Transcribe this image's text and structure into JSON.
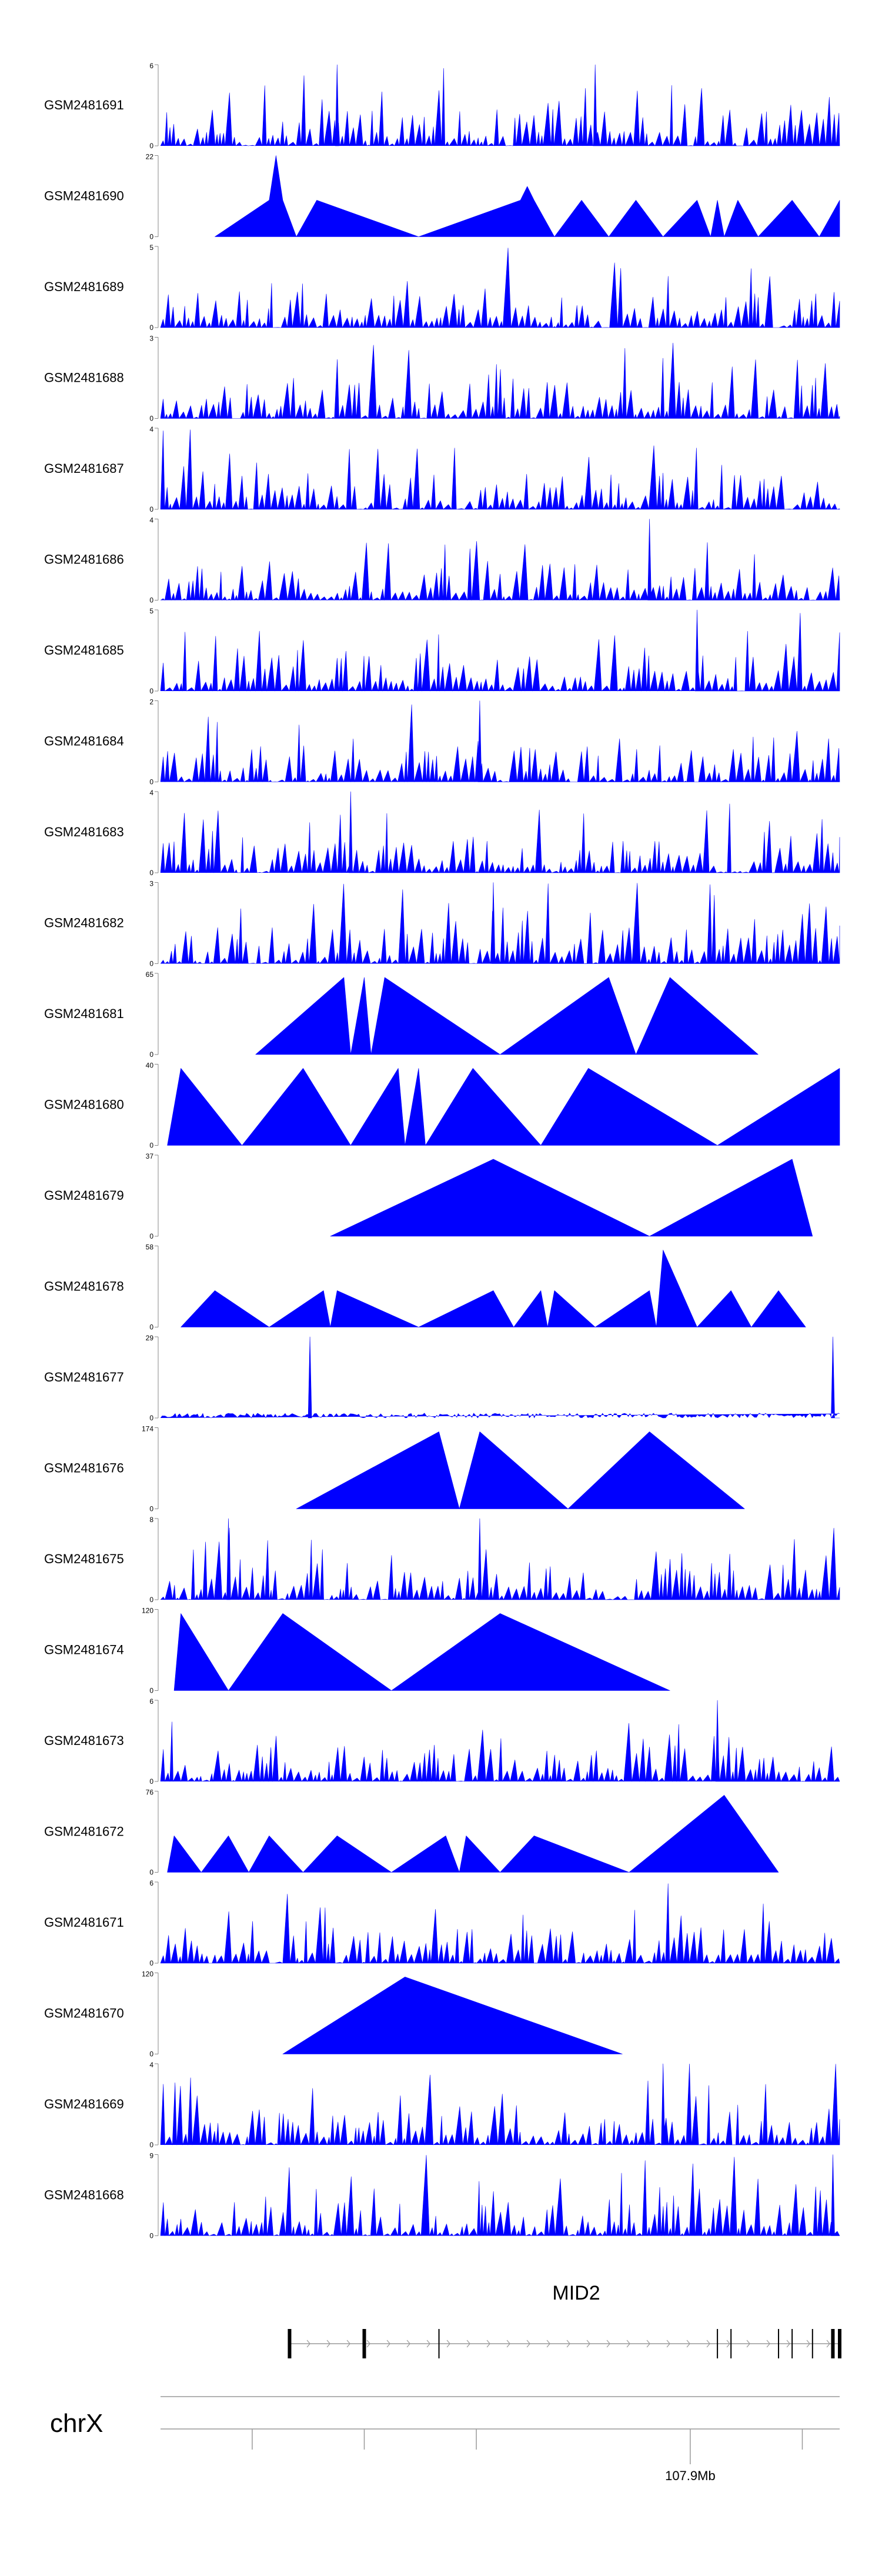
{
  "chart_data": {
    "type": "area",
    "title": "",
    "fill_color": "#0000ff",
    "tracks": [
      {
        "name": "GSM2481691",
        "ymax": 6,
        "pattern": "spiky",
        "seed": 11,
        "peaks": [
          0.26,
          0.64
        ]
      },
      {
        "name": "GSM2481690",
        "ymax": 22,
        "pattern": "triangles",
        "start": 0.08,
        "points": [
          [
            0.08,
            0
          ],
          [
            0.16,
            0.45
          ],
          [
            0.17,
            1.0
          ],
          [
            0.18,
            0.45
          ],
          [
            0.2,
            0
          ],
          [
            0.23,
            0.45
          ],
          [
            0.38,
            0
          ],
          [
            0.53,
            0.45
          ],
          [
            0.54,
            0.62
          ],
          [
            0.55,
            0.45
          ],
          [
            0.58,
            0
          ],
          [
            0.62,
            0.45
          ],
          [
            0.66,
            0
          ],
          [
            0.7,
            0.45
          ],
          [
            0.74,
            0
          ],
          [
            0.79,
            0.45
          ],
          [
            0.81,
            0
          ],
          [
            0.82,
            0.45
          ],
          [
            0.83,
            0
          ],
          [
            0.85,
            0.45
          ],
          [
            0.88,
            0
          ],
          [
            0.93,
            0.45
          ],
          [
            0.97,
            0
          ],
          [
            1.0,
            0.45
          ]
        ]
      },
      {
        "name": "GSM2481689",
        "ymax": 5,
        "pattern": "spiky",
        "seed": 23,
        "peaks": []
      },
      {
        "name": "GSM2481688",
        "ymax": 3,
        "pattern": "spiky",
        "seed": 37,
        "peaks": []
      },
      {
        "name": "GSM2481687",
        "ymax": 4,
        "pattern": "spiky",
        "seed": 41,
        "peaks": []
      },
      {
        "name": "GSM2481686",
        "ymax": 4,
        "pattern": "spiky",
        "seed": 53,
        "peaks": [
          0.72
        ]
      },
      {
        "name": "GSM2481685",
        "ymax": 5,
        "pattern": "spiky",
        "seed": 61,
        "peaks": [
          0.79
        ]
      },
      {
        "name": "GSM2481684",
        "ymax": 2,
        "pattern": "spiky",
        "seed": 71,
        "peaks": [
          0.47
        ]
      },
      {
        "name": "GSM2481683",
        "ymax": 4,
        "pattern": "spiky",
        "seed": 83,
        "peaks": [
          0.28
        ]
      },
      {
        "name": "GSM2481682",
        "ymax": 3,
        "pattern": "spiky",
        "seed": 97,
        "peaks": [
          0.49
        ]
      },
      {
        "name": "GSM2481681",
        "ymax": 65,
        "pattern": "triangles",
        "start": 0.14,
        "points": [
          [
            0.14,
            0
          ],
          [
            0.27,
            0.95
          ],
          [
            0.28,
            0
          ],
          [
            0.3,
            0.95
          ],
          [
            0.31,
            0
          ],
          [
            0.33,
            0.95
          ],
          [
            0.5,
            0
          ],
          [
            0.66,
            0.95
          ],
          [
            0.7,
            0
          ],
          [
            0.75,
            0.95
          ],
          [
            0.88,
            0
          ]
        ]
      },
      {
        "name": "GSM2481680",
        "ymax": 40,
        "pattern": "triangles",
        "start": 0.01,
        "points": [
          [
            0.01,
            0
          ],
          [
            0.03,
            0.95
          ],
          [
            0.12,
            0
          ],
          [
            0.21,
            0.95
          ],
          [
            0.28,
            0
          ],
          [
            0.35,
            0.95
          ],
          [
            0.36,
            0
          ],
          [
            0.38,
            0.95
          ],
          [
            0.39,
            0
          ],
          [
            0.46,
            0.95
          ],
          [
            0.56,
            0
          ],
          [
            0.63,
            0.95
          ],
          [
            0.82,
            0
          ],
          [
            1.0,
            0.95
          ],
          [
            1.0,
            0
          ]
        ]
      },
      {
        "name": "GSM2481679",
        "ymax": 37,
        "pattern": "triangles",
        "start": 0.25,
        "points": [
          [
            0.25,
            0
          ],
          [
            0.49,
            0.95
          ],
          [
            0.72,
            0
          ],
          [
            0.93,
            0.95
          ],
          [
            0.96,
            0
          ]
        ]
      },
      {
        "name": "GSM2481678",
        "ymax": 58,
        "pattern": "triangles",
        "start": 0.03,
        "points": [
          [
            0.03,
            0
          ],
          [
            0.08,
            0.45
          ],
          [
            0.16,
            0
          ],
          [
            0.24,
            0.45
          ],
          [
            0.25,
            0
          ],
          [
            0.26,
            0.45
          ],
          [
            0.38,
            0
          ],
          [
            0.49,
            0.45
          ],
          [
            0.52,
            0
          ],
          [
            0.56,
            0.45
          ],
          [
            0.57,
            0
          ],
          [
            0.58,
            0.45
          ],
          [
            0.64,
            0
          ],
          [
            0.72,
            0.45
          ],
          [
            0.73,
            0
          ],
          [
            0.74,
            0.95
          ],
          [
            0.79,
            0
          ],
          [
            0.84,
            0.45
          ],
          [
            0.87,
            0
          ],
          [
            0.91,
            0.45
          ],
          [
            0.95,
            0
          ]
        ]
      },
      {
        "name": "GSM2481677",
        "ymax": 29,
        "pattern": "flat",
        "seed": 101,
        "peaks": [
          0.22,
          0.99
        ]
      },
      {
        "name": "GSM2481676",
        "ymax": 174,
        "pattern": "triangles",
        "start": 0.2,
        "points": [
          [
            0.2,
            0
          ],
          [
            0.41,
            0.95
          ],
          [
            0.44,
            0
          ],
          [
            0.47,
            0.95
          ],
          [
            0.6,
            0
          ],
          [
            0.72,
            0.95
          ],
          [
            0.86,
            0
          ]
        ]
      },
      {
        "name": "GSM2481675",
        "ymax": 8,
        "pattern": "spiky",
        "seed": 113,
        "peaks": [
          0.1,
          0.47
        ]
      },
      {
        "name": "GSM2481674",
        "ymax": 120,
        "pattern": "triangles",
        "start": 0.02,
        "points": [
          [
            0.02,
            0
          ],
          [
            0.03,
            0.95
          ],
          [
            0.1,
            0
          ],
          [
            0.18,
            0.95
          ],
          [
            0.34,
            0
          ],
          [
            0.5,
            0.95
          ],
          [
            0.51,
            0
          ],
          [
            0.5,
            0.95
          ],
          [
            0.75,
            0
          ]
        ]
      },
      {
        "name": "GSM2481673",
        "ymax": 6,
        "pattern": "spiky",
        "seed": 127,
        "peaks": [
          0.82
        ]
      },
      {
        "name": "GSM2481672",
        "ymax": 76,
        "pattern": "triangles",
        "start": 0.01,
        "points": [
          [
            0.01,
            0
          ],
          [
            0.02,
            0.45
          ],
          [
            0.06,
            0
          ],
          [
            0.1,
            0.45
          ],
          [
            0.13,
            0
          ],
          [
            0.16,
            0.45
          ],
          [
            0.21,
            0
          ],
          [
            0.26,
            0.45
          ],
          [
            0.34,
            0
          ],
          [
            0.42,
            0.45
          ],
          [
            0.44,
            0
          ],
          [
            0.45,
            0.45
          ],
          [
            0.5,
            0
          ],
          [
            0.55,
            0.45
          ],
          [
            0.69,
            0
          ],
          [
            0.83,
            0.95
          ],
          [
            0.91,
            0
          ]
        ]
      },
      {
        "name": "GSM2481671",
        "ymax": 6,
        "pattern": "spiky",
        "seed": 131,
        "peaks": []
      },
      {
        "name": "GSM2481670",
        "ymax": 120,
        "pattern": "triangles",
        "start": 0.18,
        "points": [
          [
            0.18,
            0
          ],
          [
            0.36,
            0.95
          ],
          [
            0.37,
            0
          ],
          [
            0.36,
            0.95
          ],
          [
            0.68,
            0
          ]
        ]
      },
      {
        "name": "GSM2481669",
        "ymax": 4,
        "pattern": "spiky",
        "seed": 139,
        "peaks": [
          0.74
        ]
      },
      {
        "name": "GSM2481668",
        "ymax": 9,
        "pattern": "spiky",
        "seed": 149,
        "peaks": [
          0.99
        ]
      }
    ],
    "gene": {
      "name": "MID2",
      "exons": [
        0.19,
        0.3,
        0.41,
        0.82,
        0.84,
        0.91,
        0.93,
        0.96,
        0.99,
        1.0
      ]
    },
    "chromosome": {
      "name": "chrX"
    },
    "axis": {
      "tick_label": "107.9Mb",
      "ticks": [
        0.135,
        0.3,
        0.465,
        0.78,
        0.945
      ],
      "label_tick": 0.78
    }
  }
}
